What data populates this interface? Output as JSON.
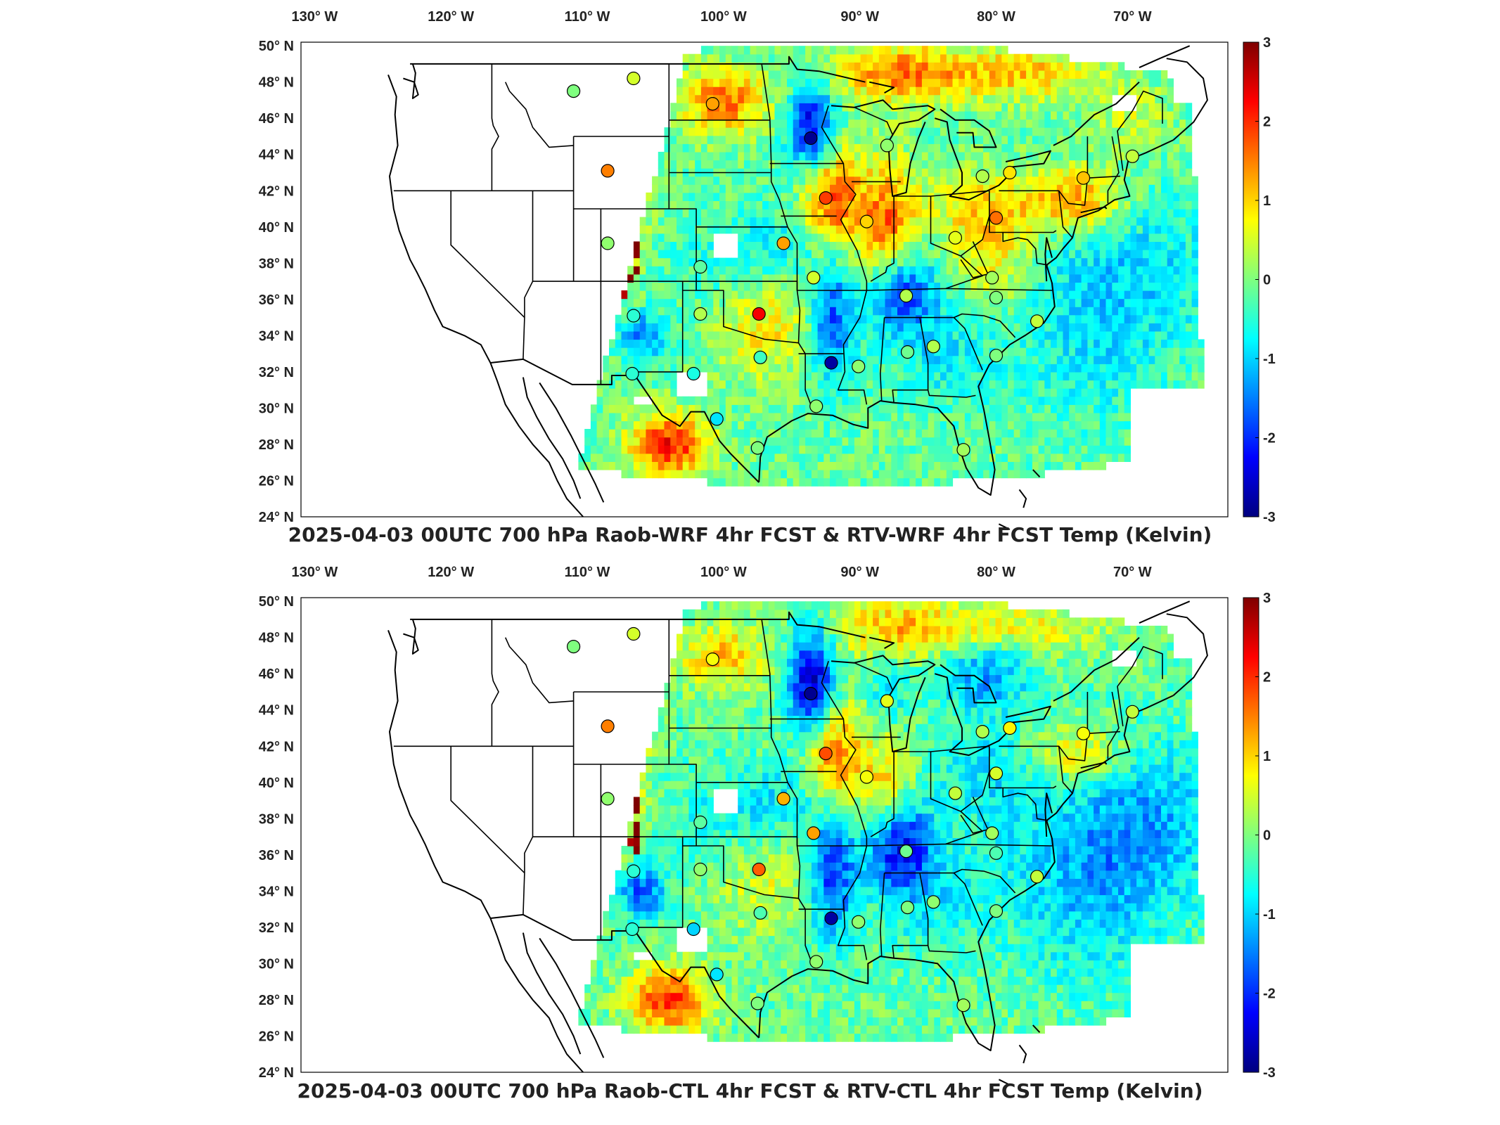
{
  "colors": {
    "colormap": [
      "#00007f",
      "#0000ff",
      "#007fff",
      "#00ffff",
      "#7fff7f",
      "#ffff00",
      "#ff7f00",
      "#ff0000",
      "#7f0000"
    ],
    "background": "#ffffff",
    "coast": "#000000"
  },
  "lon_labels": [
    "130° W",
    "120° W",
    "110° W",
    "100° W",
    "90° W",
    "80° W",
    "70° W"
  ],
  "lat_labels": [
    "50° N",
    "48° N",
    "46° N",
    "44° N",
    "42° N",
    "40° N",
    "38° N",
    "36° N",
    "34° N",
    "32° N",
    "30° N",
    "28° N",
    "26° N",
    "24° N"
  ],
  "colorbar_ticks": [
    "3",
    "2",
    "1",
    "0",
    "-1",
    "-2",
    "-3"
  ],
  "panels": [
    {
      "id": "top",
      "title": "2025-04-03 00UTC 700 hPa Raob-WRF 4hr FCST & RTV-WRF 4hr FCST Temp (Kelvin)",
      "stations": [
        {
          "lon": -111.0,
          "lat": 47.5,
          "v": 0.0
        },
        {
          "lon": -106.6,
          "lat": 48.2,
          "v": 0.5
        },
        {
          "lon": -100.8,
          "lat": 46.8,
          "v": 1.3
        },
        {
          "lon": -93.6,
          "lat": 44.9,
          "v": -2.9
        },
        {
          "lon": -88.0,
          "lat": 44.5,
          "v": 0.1
        },
        {
          "lon": -81.0,
          "lat": 42.8,
          "v": 0.3
        },
        {
          "lon": -79.0,
          "lat": 43.0,
          "v": 0.9
        },
        {
          "lon": -73.6,
          "lat": 42.7,
          "v": 1.1
        },
        {
          "lon": -70.0,
          "lat": 43.9,
          "v": 0.4
        },
        {
          "lon": -108.5,
          "lat": 43.1,
          "v": 1.5
        },
        {
          "lon": -92.5,
          "lat": 41.6,
          "v": 1.9
        },
        {
          "lon": -89.5,
          "lat": 40.3,
          "v": 1.0
        },
        {
          "lon": -80.0,
          "lat": 40.5,
          "v": 1.6
        },
        {
          "lon": -83.0,
          "lat": 39.4,
          "v": 0.6
        },
        {
          "lon": -108.5,
          "lat": 39.1,
          "v": 0.1
        },
        {
          "lon": -101.7,
          "lat": 37.8,
          "v": -0.2
        },
        {
          "lon": -95.6,
          "lat": 39.1,
          "v": 1.3
        },
        {
          "lon": -93.4,
          "lat": 37.2,
          "v": 0.5
        },
        {
          "lon": -86.6,
          "lat": 36.2,
          "v": 0.3
        },
        {
          "lon": -80.3,
          "lat": 37.2,
          "v": 0.2
        },
        {
          "lon": -80.0,
          "lat": 36.1,
          "v": 0.0
        },
        {
          "lon": -77.0,
          "lat": 34.8,
          "v": 0.4
        },
        {
          "lon": -106.6,
          "lat": 35.1,
          "v": -0.5
        },
        {
          "lon": -101.7,
          "lat": 35.2,
          "v": 0.3
        },
        {
          "lon": -97.4,
          "lat": 35.2,
          "v": 2.3
        },
        {
          "lon": -97.3,
          "lat": 32.8,
          "v": -0.4
        },
        {
          "lon": -92.1,
          "lat": 32.5,
          "v": -2.8
        },
        {
          "lon": -90.1,
          "lat": 32.3,
          "v": 0.1
        },
        {
          "lon": -86.5,
          "lat": 33.1,
          "v": -0.1
        },
        {
          "lon": -84.6,
          "lat": 33.4,
          "v": 0.3
        },
        {
          "lon": -80.0,
          "lat": 32.9,
          "v": 0.0
        },
        {
          "lon": -106.7,
          "lat": 31.9,
          "v": -0.5
        },
        {
          "lon": -102.2,
          "lat": 31.9,
          "v": -0.6
        },
        {
          "lon": -100.5,
          "lat": 29.4,
          "v": -0.9
        },
        {
          "lon": -93.2,
          "lat": 30.1,
          "v": 0.1
        },
        {
          "lon": -97.5,
          "lat": 27.8,
          "v": 0.0
        },
        {
          "lon": -82.4,
          "lat": 27.7,
          "v": 0.2
        }
      ]
    },
    {
      "id": "bottom",
      "title": "2025-04-03 00UTC 700 hPa Raob-CTL 4hr FCST & RTV-CTL 4hr FCST Temp (Kelvin)",
      "stations": [
        {
          "lon": -111.0,
          "lat": 47.5,
          "v": 0.0
        },
        {
          "lon": -106.6,
          "lat": 48.2,
          "v": 0.5
        },
        {
          "lon": -100.8,
          "lat": 46.8,
          "v": 0.7
        },
        {
          "lon": -93.6,
          "lat": 44.9,
          "v": -2.9
        },
        {
          "lon": -88.0,
          "lat": 44.5,
          "v": 0.6
        },
        {
          "lon": -81.0,
          "lat": 42.8,
          "v": 0.3
        },
        {
          "lon": -79.0,
          "lat": 43.0,
          "v": 0.8
        },
        {
          "lon": -73.6,
          "lat": 42.7,
          "v": 0.7
        },
        {
          "lon": -70.0,
          "lat": 43.9,
          "v": 0.4
        },
        {
          "lon": -108.5,
          "lat": 43.1,
          "v": 1.5
        },
        {
          "lon": -92.5,
          "lat": 41.6,
          "v": 1.8
        },
        {
          "lon": -89.5,
          "lat": 40.3,
          "v": 0.7
        },
        {
          "lon": -80.0,
          "lat": 40.5,
          "v": 0.5
        },
        {
          "lon": -83.0,
          "lat": 39.4,
          "v": 0.4
        },
        {
          "lon": -108.5,
          "lat": 39.1,
          "v": 0.1
        },
        {
          "lon": -101.7,
          "lat": 37.8,
          "v": -0.2
        },
        {
          "lon": -95.6,
          "lat": 39.1,
          "v": 1.2
        },
        {
          "lon": -93.4,
          "lat": 37.2,
          "v": 1.3
        },
        {
          "lon": -86.6,
          "lat": 36.2,
          "v": -0.1
        },
        {
          "lon": -80.3,
          "lat": 37.2,
          "v": 0.2
        },
        {
          "lon": -80.0,
          "lat": 36.1,
          "v": -0.3
        },
        {
          "lon": -77.0,
          "lat": 34.8,
          "v": 0.4
        },
        {
          "lon": -106.6,
          "lat": 35.1,
          "v": -0.5
        },
        {
          "lon": -101.7,
          "lat": 35.2,
          "v": 0.1
        },
        {
          "lon": -97.4,
          "lat": 35.2,
          "v": 1.7
        },
        {
          "lon": -97.3,
          "lat": 32.8,
          "v": -0.3
        },
        {
          "lon": -92.1,
          "lat": 32.5,
          "v": -2.8
        },
        {
          "lon": -90.1,
          "lat": 32.3,
          "v": 0.1
        },
        {
          "lon": -86.5,
          "lat": 33.1,
          "v": 0.0
        },
        {
          "lon": -84.6,
          "lat": 33.4,
          "v": 0.1
        },
        {
          "lon": -80.0,
          "lat": 32.9,
          "v": 0.0
        },
        {
          "lon": -106.7,
          "lat": 31.9,
          "v": -0.5
        },
        {
          "lon": -102.2,
          "lat": 31.9,
          "v": -1.0
        },
        {
          "lon": -100.5,
          "lat": 29.4,
          "v": -0.9
        },
        {
          "lon": -93.2,
          "lat": 30.1,
          "v": 0.1
        },
        {
          "lon": -97.5,
          "lat": 27.8,
          "v": 0.0
        },
        {
          "lon": -82.4,
          "lat": 27.7,
          "v": 0.2
        }
      ]
    }
  ]
}
